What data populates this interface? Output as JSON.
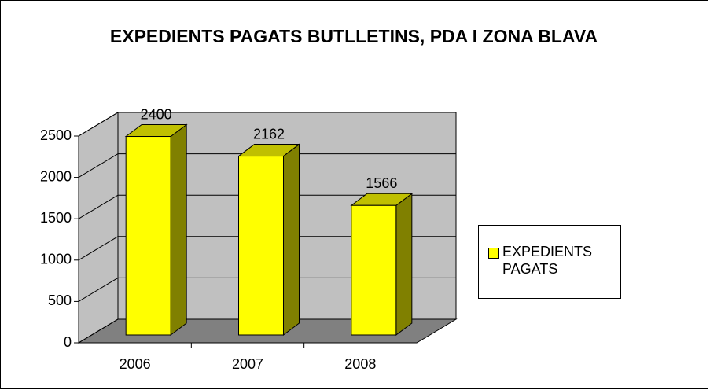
{
  "chart_data": {
    "type": "bar",
    "title": "EXPEDIENTS PAGATS BUTLLETINS, PDA I ZONA BLAVA",
    "categories": [
      "2006",
      "2007",
      "2008"
    ],
    "series": [
      {
        "name": "EXPEDIENTS PAGATS",
        "color": "#ffff00",
        "values": [
          2400,
          2162,
          1566
        ]
      }
    ],
    "ylim": [
      0,
      2500
    ],
    "yticks": [
      0,
      500,
      1000,
      1500,
      2000,
      2500
    ],
    "grid": true,
    "legend": "right"
  }
}
